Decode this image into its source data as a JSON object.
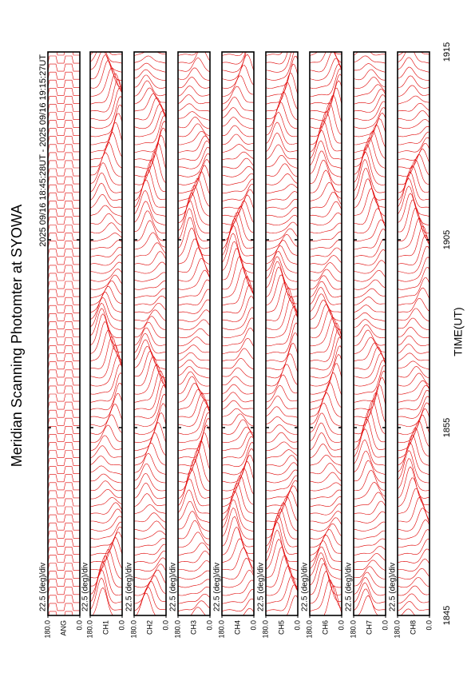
{
  "chart_data": {
    "type": "stackplot",
    "title": "Meridian Scanning Photomter at SYOWA",
    "subtitle": "2025 09/16 18:45:28UT - 2025 09/16 19:15:27UT",
    "x_label": "TIME(UT)",
    "time_ticks": [
      "1845",
      "1855",
      "1905",
      "1915"
    ],
    "color": "#e00000",
    "panels": [
      {
        "name": "ANG",
        "scale": "22.5 (deg)/div",
        "ylim": [
          0,
          180
        ],
        "yticks": [
          {
            "value": 180,
            "label": "180.0"
          },
          {
            "value": 0,
            "label": "0.0"
          }
        ]
      },
      {
        "name": "CH1",
        "scale": "22.5 (deg)/div",
        "ylim": [
          0,
          180
        ],
        "yticks": [
          {
            "value": 180,
            "label": "180.0"
          },
          {
            "value": 0,
            "label": "0.0"
          }
        ]
      },
      {
        "name": "CH2",
        "scale": "22.5 (deg)/div",
        "ylim": [
          0,
          180
        ],
        "yticks": [
          {
            "value": 180,
            "label": "180.0"
          },
          {
            "value": 0,
            "label": "0.0"
          }
        ]
      },
      {
        "name": "CH3",
        "scale": "22.5 (deg)/div",
        "ylim": [
          0,
          180
        ],
        "yticks": [
          {
            "value": 180,
            "label": "180.0"
          },
          {
            "value": 0,
            "label": "0.0"
          }
        ]
      },
      {
        "name": "CH4",
        "scale": "22.5 (deg)/div",
        "ylim": [
          0,
          180
        ],
        "yticks": [
          {
            "value": 180,
            "label": "180.0"
          },
          {
            "value": 0,
            "label": "0.0"
          }
        ]
      },
      {
        "name": "CH5",
        "scale": "22.5 (deg)/div",
        "ylim": [
          0,
          180
        ],
        "yticks": [
          {
            "value": 180,
            "label": "180.0"
          },
          {
            "value": 0,
            "label": "0.0"
          }
        ]
      },
      {
        "name": "CH6",
        "scale": "22.5 (deg)/div",
        "ylim": [
          0,
          180
        ],
        "yticks": [
          {
            "value": 180,
            "label": "180.0"
          },
          {
            "value": 0,
            "label": "0.0"
          }
        ]
      },
      {
        "name": "CH7",
        "scale": "22.5 (deg)/div",
        "ylim": [
          0,
          180
        ],
        "yticks": [
          {
            "value": 180,
            "label": "180.0"
          },
          {
            "value": 0,
            "label": "0.0"
          }
        ]
      },
      {
        "name": "CH8",
        "scale": "22.5 (deg)/div",
        "ylim": [
          0,
          180
        ],
        "yticks": [
          {
            "value": 180,
            "label": "180.0"
          },
          {
            "value": 0,
            "label": "0.0"
          }
        ]
      }
    ]
  }
}
